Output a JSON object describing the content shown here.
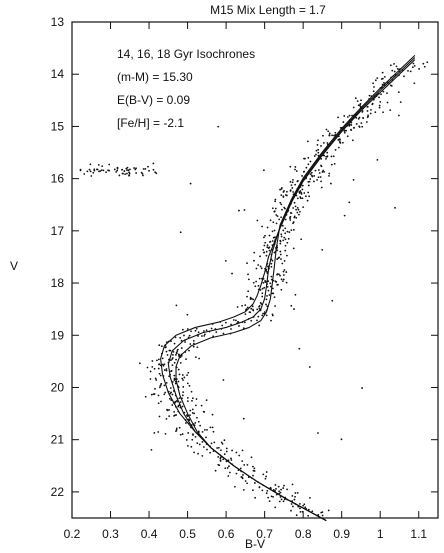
{
  "chart_data": {
    "type": "scatter",
    "title": "M15 Mix Length = 1.7",
    "xlabel": "B-V",
    "ylabel": "V",
    "xlim": [
      0.2,
      1.15
    ],
    "ylim": [
      13,
      22.5
    ],
    "y_inverted": true,
    "grid": false,
    "x_ticks": [
      "0.2",
      "0.3",
      "0.4",
      "0.5",
      "0.6",
      "0.7",
      "0.8",
      "0.9",
      "1",
      "1.1"
    ],
    "y_ticks": [
      "13",
      "14",
      "15",
      "16",
      "17",
      "18",
      "19",
      "20",
      "21",
      "22"
    ],
    "annotations": [
      "14, 16, 18 Gyr Isochrones",
      "(m-M) = 15.30",
      "E(B-V) = 0.09",
      "[Fe/H] = -2.1"
    ],
    "isochrones": [
      {
        "x": [
          1.09,
          1.05,
          1.0,
          0.95,
          0.9,
          0.85,
          0.8,
          0.77,
          0.74,
          0.71,
          0.7,
          0.69,
          0.68,
          0.67,
          0.65,
          0.62,
          0.58,
          0.52,
          0.47,
          0.44,
          0.43,
          0.435,
          0.45,
          0.48,
          0.52,
          0.56,
          0.62,
          0.68,
          0.76,
          0.86
        ],
        "y": [
          13.72,
          14.0,
          14.35,
          14.7,
          15.1,
          15.55,
          16.05,
          16.45,
          16.95,
          17.5,
          17.8,
          18.05,
          18.25,
          18.4,
          18.55,
          18.65,
          18.75,
          18.85,
          19.0,
          19.2,
          19.45,
          19.75,
          20.1,
          20.5,
          20.85,
          21.15,
          21.5,
          21.8,
          22.15,
          22.55
        ]
      },
      {
        "x": [
          1.09,
          1.05,
          1.0,
          0.95,
          0.9,
          0.85,
          0.8,
          0.77,
          0.74,
          0.72,
          0.71,
          0.705,
          0.7,
          0.69,
          0.67,
          0.64,
          0.6,
          0.54,
          0.49,
          0.46,
          0.45,
          0.455,
          0.47,
          0.49,
          0.52,
          0.56,
          0.62,
          0.68,
          0.76,
          0.86
        ],
        "y": [
          13.68,
          13.96,
          14.31,
          14.67,
          15.07,
          15.52,
          16.02,
          16.42,
          16.92,
          17.4,
          17.75,
          18.05,
          18.3,
          18.5,
          18.65,
          18.75,
          18.85,
          18.95,
          19.1,
          19.3,
          19.55,
          19.8,
          20.15,
          20.5,
          20.85,
          21.15,
          21.5,
          21.8,
          22.15,
          22.55
        ]
      },
      {
        "x": [
          1.09,
          1.05,
          1.0,
          0.95,
          0.9,
          0.85,
          0.8,
          0.77,
          0.74,
          0.73,
          0.725,
          0.72,
          0.715,
          0.705,
          0.69,
          0.66,
          0.62,
          0.56,
          0.51,
          0.48,
          0.47,
          0.47,
          0.48,
          0.5,
          0.525,
          0.56,
          0.62,
          0.68,
          0.76,
          0.86
        ],
        "y": [
          13.64,
          13.92,
          14.27,
          14.64,
          15.04,
          15.49,
          15.99,
          16.39,
          16.89,
          17.35,
          17.7,
          18.0,
          18.3,
          18.55,
          18.72,
          18.85,
          18.95,
          19.05,
          19.2,
          19.4,
          19.6,
          19.85,
          20.15,
          20.5,
          20.85,
          21.15,
          21.5,
          21.8,
          22.15,
          22.55
        ]
      }
    ]
  }
}
